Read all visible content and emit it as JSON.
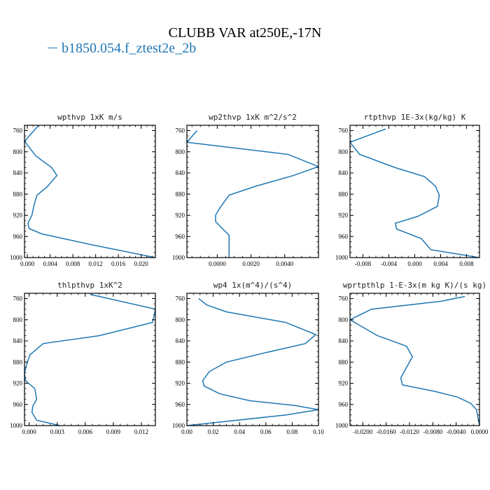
{
  "figure": {
    "title": "CLUBB VAR at250E,-17N",
    "legend_label": "b1850.054.f_ztest2e_2b",
    "line_color": "#1f77b4"
  },
  "chart_data": [
    {
      "type": "line",
      "title": "wpthvp  1xK m/s",
      "xlim": [
        -0.0005,
        0.0225
      ],
      "ylim": [
        1000,
        750
      ],
      "xticks": [
        0.0,
        0.004,
        0.008,
        0.012,
        0.016,
        0.02
      ],
      "xtick_labels": [
        "0.000",
        "0.004",
        "0.008",
        "0.012",
        "0.016",
        "0.020"
      ],
      "yticks": [
        760,
        800,
        840,
        880,
        920,
        960,
        1000
      ],
      "series": [
        {
          "x": [
            0.002,
            0.0005,
            -0.0005,
            0.0015,
            0.0043,
            0.0052,
            0.0035,
            0.0017,
            0.0012,
            0.0008,
            0.0001,
            0.0003,
            0.0025,
            0.011,
            0.0225
          ],
          "y": [
            750,
            768,
            780,
            808,
            830,
            845,
            866,
            882,
            900,
            920,
            935,
            945,
            955,
            975,
            1000
          ]
        }
      ]
    },
    {
      "type": "line",
      "title": "wp2thvp  1xK m^2/s^2",
      "xlim": [
        -0.0018,
        0.006
      ],
      "ylim": [
        1000,
        750
      ],
      "xticks": [
        0.0,
        0.002,
        0.004
      ],
      "xtick_labels": [
        "0.0000",
        "0.0020",
        "0.0040"
      ],
      "yticks": [
        760,
        800,
        840,
        880,
        920,
        960,
        1000
      ],
      "series": [
        {
          "x": [
            -0.0012,
            -0.0018,
            0.0042,
            0.006,
            0.0045,
            0.0023,
            0.0007,
            0.0002,
            -0.0001,
            -0.0001,
            0.0003,
            0.0007,
            0.0007
          ],
          "y": [
            760,
            782,
            805,
            828,
            845,
            865,
            882,
            904,
            920,
            932,
            945,
            958,
            1000
          ]
        }
      ]
    },
    {
      "type": "line",
      "title": "rtpthvp  1E-3x(kg/kg) K",
      "xlim": [
        -0.01,
        0.01
      ],
      "ylim": [
        1000,
        750
      ],
      "xticks": [
        -0.008,
        -0.004,
        0.0,
        0.004,
        0.008
      ],
      "xtick_labels": [
        "-0.008",
        "-0.004",
        "0.000",
        "0.004",
        "0.008"
      ],
      "yticks": [
        760,
        800,
        840,
        880,
        920,
        960,
        1000
      ],
      "series": [
        {
          "x": [
            -0.0045,
            -0.01,
            -0.0085,
            -0.003,
            0.0015,
            0.0032,
            0.0038,
            0.0035,
            0.0005,
            -0.003,
            -0.0028,
            0.001,
            0.0025,
            0.01
          ],
          "y": [
            757,
            782,
            805,
            830,
            847,
            865,
            882,
            903,
            922,
            935,
            946,
            964,
            985,
            1000
          ]
        }
      ]
    },
    {
      "type": "line",
      "title": "thlpthvp  1xK^2",
      "xlim": [
        -0.0005,
        0.0135
      ],
      "ylim": [
        1000,
        750
      ],
      "xticks": [
        0.0,
        0.003,
        0.006,
        0.009,
        0.012
      ],
      "xtick_labels": [
        "0.000",
        "0.003",
        "0.006",
        "0.009",
        "0.012"
      ],
      "yticks": [
        760,
        800,
        840,
        880,
        920,
        960,
        1000
      ],
      "series": [
        {
          "x": [
            0.0065,
            0.0135,
            0.0132,
            0.0075,
            0.0015,
            0.0001,
            -0.0002,
            -0.0005,
            -0.0004,
            0.0006,
            0.0008,
            0.0004,
            0.0003,
            0.0008,
            0.0033
          ],
          "y": [
            752,
            780,
            805,
            830,
            845,
            866,
            880,
            900,
            915,
            930,
            950,
            963,
            975,
            990,
            1000
          ]
        }
      ]
    },
    {
      "type": "line",
      "title": "wp4  1x(m^4)/(s^4)",
      "xlim": [
        0.0,
        0.1
      ],
      "ylim": [
        1000,
        750
      ],
      "xticks": [
        0.0,
        0.02,
        0.04,
        0.06,
        0.08,
        0.1
      ],
      "xtick_labels": [
        "0.00",
        "0.02",
        "0.04",
        "0.06",
        "0.08",
        "0.10"
      ],
      "yticks": [
        760,
        800,
        840,
        880,
        920,
        960,
        1000
      ],
      "series": [
        {
          "x": [
            0.009,
            0.015,
            0.03,
            0.075,
            0.098,
            0.09,
            0.06,
            0.03,
            0.017,
            0.012,
            0.013,
            0.025,
            0.048,
            0.082,
            0.1,
            0.075,
            0.0
          ],
          "y": [
            760,
            772,
            785,
            805,
            828,
            845,
            862,
            880,
            898,
            915,
            925,
            940,
            953,
            962,
            970,
            980,
            1000
          ]
        }
      ]
    },
    {
      "type": "line",
      "title": "wprtpthlp  1-E-3x(m kg K)/(s kg)",
      "xlim": [
        -0.0222,
        0.0
      ],
      "ylim": [
        1000,
        750
      ],
      "xticks": [
        -0.02,
        -0.016,
        -0.012,
        -0.008,
        -0.004,
        0.0
      ],
      "xtick_labels": [
        "-0.0200",
        "-0.0160",
        "-0.0120",
        "-0.0080",
        "-0.0040",
        "0.0000"
      ],
      "yticks": [
        760,
        800,
        840,
        880,
        920,
        960,
        1000
      ],
      "series": [
        {
          "x": [
            -0.0025,
            -0.0065,
            -0.0185,
            -0.0222,
            -0.0175,
            -0.0125,
            -0.0115,
            -0.0125,
            -0.0135,
            -0.0132,
            -0.0078,
            -0.0038,
            -0.0015,
            -0.0005,
            0.0
          ],
          "y": [
            756,
            765,
            780,
            800,
            830,
            850,
            870,
            890,
            910,
            923,
            935,
            946,
            958,
            970,
            1000
          ]
        }
      ]
    }
  ]
}
